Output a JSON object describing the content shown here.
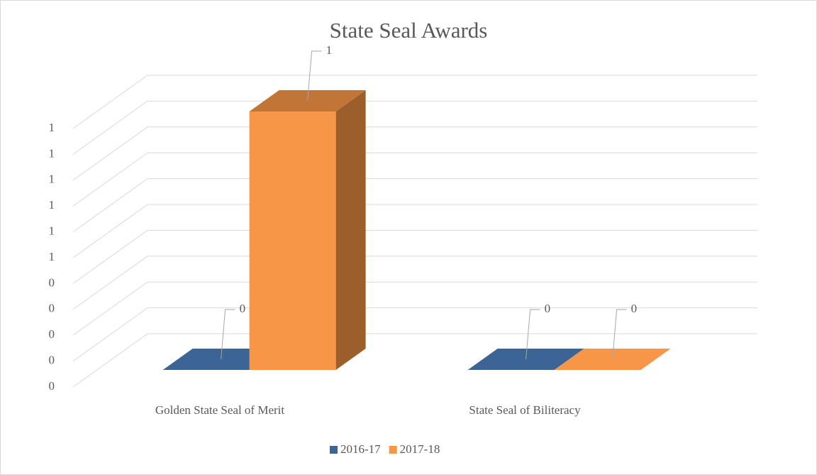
{
  "chart_data": {
    "type": "bar3d",
    "title": "State Seal Awards",
    "categories": [
      "Golden State Seal of Merit",
      "State Seal of Biliteracy"
    ],
    "series": [
      {
        "name": "2016-17",
        "color": "#3c6494",
        "values": [
          0,
          0
        ]
      },
      {
        "name": "2017-18",
        "color": "#f79646",
        "values": [
          1,
          0
        ]
      }
    ],
    "ylim": [
      0,
      1
    ],
    "yticks": [
      {
        "value": 0,
        "label": "0"
      },
      {
        "value": 0.1,
        "label": "0"
      },
      {
        "value": 0.2,
        "label": "0"
      },
      {
        "value": 0.3,
        "label": "0"
      },
      {
        "value": 0.4,
        "label": "0"
      },
      {
        "value": 0.5,
        "label": "1"
      },
      {
        "value": 0.6,
        "label": "1"
      },
      {
        "value": 0.7,
        "label": "1"
      },
      {
        "value": 0.8,
        "label": "1"
      },
      {
        "value": 0.9,
        "label": "1"
      },
      {
        "value": 1,
        "label": "1"
      }
    ],
    "grid": true,
    "legend": "bottom"
  }
}
